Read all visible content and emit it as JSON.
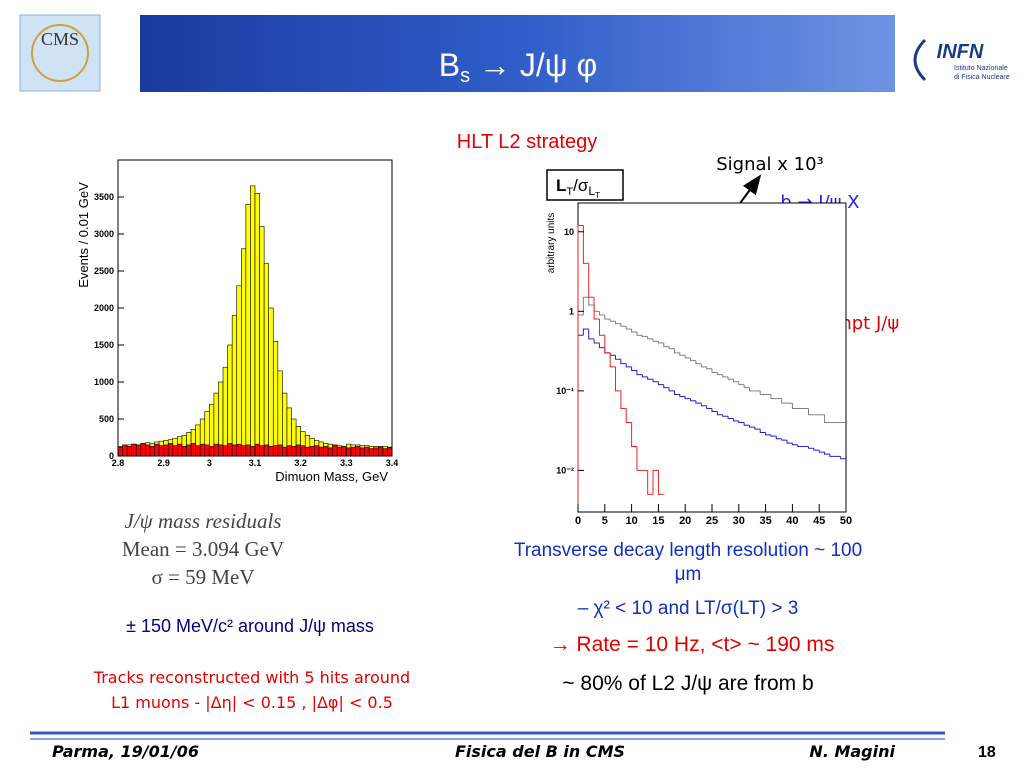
{
  "header": {
    "title": {
      "main": "B",
      "sub": "s",
      "rest": " → J/ψ φ"
    },
    "left_logo": "CMS",
    "right_logo": {
      "name": "INFN",
      "line1": "Istituto Nazionale",
      "line2": "di Fisica Nucleare"
    }
  },
  "heading": "HLT L2 strategy",
  "left": {
    "residuals": [
      "J/ψ mass residuals",
      "Mean = 3.094 GeV",
      "σ = 59 MeV"
    ],
    "window": "± 150 MeV/c² around  J/ψ mass",
    "tracks": [
      "Tracks reconstructed with 5 hits around",
      "L1 muons - |Δη| < 0.15 , |Δφ| < 0.5"
    ]
  },
  "right": {
    "box_label": [
      "L",
      "T",
      "/σ",
      "L",
      "T"
    ],
    "resolution": [
      "Transverse decay length resolution ~ 100",
      "μm"
    ],
    "cut": "–  χ² < 10 and LT/σ(LT) > 3",
    "rate": "→ Rate = 10 Hz,  <t> ~ 190 ms",
    "fraction": "~ 80% of L2 J/ψ are from b"
  },
  "footer": {
    "place": "Parma, 19/01/06",
    "talk": "Fisica del B in CMS",
    "author": "N. Magini",
    "page": "18"
  },
  "chart_data": [
    {
      "type": "histogram",
      "histtype": "filled",
      "xlabel": "Dimuon Mass, GeV",
      "ylabel": "Events / 0.01 GeV",
      "bins": [
        2.8,
        2.81,
        2.82,
        2.83,
        2.84,
        2.85,
        2.86,
        2.87,
        2.88,
        2.89,
        2.9,
        2.91,
        2.92,
        2.93,
        2.94,
        2.95,
        2.96,
        2.97,
        2.98,
        2.99,
        3,
        3.01,
        3.02,
        3.03,
        3.04,
        3.05,
        3.06,
        3.07,
        3.08,
        3.09,
        3.1,
        3.11,
        3.12,
        3.13,
        3.14,
        3.15,
        3.16,
        3.17,
        3.18,
        3.19,
        3.2,
        3.21,
        3.22,
        3.23,
        3.24,
        3.25,
        3.26,
        3.27,
        3.28,
        3.29,
        3.3,
        3.31,
        3.32,
        3.33,
        3.34,
        3.35,
        3.36,
        3.37,
        3.38,
        3.39,
        3.4
      ],
      "series": [
        {
          "color": "#ffff00",
          "values": [
            130,
            140,
            150,
            160,
            150,
            170,
            180,
            170,
            190,
            200,
            210,
            220,
            240,
            260,
            280,
            320,
            360,
            420,
            500,
            600,
            700,
            850,
            1000,
            1200,
            1500,
            1900,
            2300,
            2800,
            3400,
            3650,
            3550,
            3100,
            2600,
            2000,
            1550,
            1150,
            850,
            650,
            500,
            400,
            330,
            280,
            240,
            210,
            190,
            170,
            160,
            150,
            140,
            130,
            160,
            150,
            150,
            140,
            140,
            130,
            130,
            130,
            130,
            120
          ]
        },
        {
          "color": "#ff0000",
          "values": [
            120,
            150,
            130,
            160,
            140,
            170,
            150,
            130,
            160,
            140,
            150,
            170,
            140,
            160,
            130,
            150,
            170,
            140,
            160,
            150,
            130,
            160,
            150,
            140,
            170,
            150,
            160,
            140,
            150,
            130,
            160,
            140,
            150,
            130,
            140,
            150,
            120,
            140,
            130,
            150,
            140,
            120,
            130,
            140,
            120,
            130,
            110,
            140,
            120,
            130,
            110,
            120,
            130,
            110,
            120,
            100,
            110,
            120,
            100,
            110
          ]
        }
      ],
      "xlim": [
        2.8,
        3.4
      ],
      "xticks": [
        2.8,
        2.9,
        3,
        3.1,
        3.2,
        3.3,
        3.4
      ],
      "ylim": [
        0,
        4000
      ],
      "yticks": [
        0,
        500,
        1000,
        1500,
        2000,
        2500,
        3000,
        3500
      ]
    },
    {
      "type": "histogram",
      "histtype": "step",
      "ylabel": "arbitrary units",
      "log_y": true,
      "bins": [
        0,
        1,
        2,
        3,
        4,
        5,
        6,
        7,
        8,
        9,
        10,
        11,
        12,
        13,
        14,
        15,
        16,
        17,
        18,
        19,
        20,
        21,
        22,
        23,
        24,
        25,
        26,
        27,
        28,
        29,
        30,
        31,
        32,
        33,
        34,
        35,
        36,
        37,
        38,
        39,
        40,
        41,
        42,
        43,
        44,
        45,
        46,
        47,
        48,
        49,
        50
      ],
      "series": [
        {
          "name": "Signal x 10³",
          "color": "#808080",
          "values": [
            0.9,
            1.5,
            1.2,
            1,
            0.9,
            0.8,
            0.75,
            0.7,
            0.65,
            0.6,
            0.55,
            0.5,
            0.48,
            0.45,
            0.42,
            0.4,
            0.36,
            0.34,
            0.3,
            0.28,
            0.26,
            0.24,
            0.22,
            0.2,
            0.19,
            0.17,
            0.16,
            0.15,
            0.14,
            0.13,
            0.12,
            0.11,
            0.1,
            0.1,
            0.09,
            0.09,
            0.08,
            0.08,
            0.07,
            0.07,
            0.06,
            0.06,
            0.06,
            0.05,
            0.05,
            0.05,
            0.04,
            0.04,
            0.04,
            0.04
          ]
        },
        {
          "name": "b → J/ψ X",
          "color": "#2222cc",
          "values": [
            0.5,
            0.6,
            0.45,
            0.4,
            0.35,
            0.3,
            0.28,
            0.25,
            0.22,
            0.2,
            0.18,
            0.16,
            0.15,
            0.14,
            0.13,
            0.12,
            0.11,
            0.1,
            0.09,
            0.085,
            0.08,
            0.075,
            0.07,
            0.065,
            0.06,
            0.055,
            0.05,
            0.048,
            0.045,
            0.042,
            0.04,
            0.037,
            0.035,
            0.033,
            0.03,
            0.028,
            0.027,
            0.025,
            0.024,
            0.022,
            0.021,
            0.02,
            0.02,
            0.019,
            0.018,
            0.017,
            0.016,
            0.015,
            0.015,
            0.014
          ]
        },
        {
          "name": "prompt J/ψ",
          "color": "#ee2222",
          "values": [
            12,
            4,
            1.5,
            0.8,
            0.5,
            0.3,
            0.2,
            0.1,
            0.06,
            0.04,
            0.02,
            0.01,
            0.01,
            0.005,
            0.01,
            0.005,
            null,
            null,
            null,
            null,
            null,
            null,
            null,
            null,
            null,
            null,
            null,
            null,
            null,
            null,
            null,
            null,
            null,
            null,
            null,
            null,
            null,
            null,
            null,
            null,
            null,
            null,
            null,
            null,
            null,
            null,
            null,
            null,
            null,
            null
          ]
        }
      ],
      "xlim": [
        0,
        50
      ],
      "xticks": [
        0,
        5,
        10,
        15,
        20,
        25,
        30,
        35,
        40,
        45,
        50
      ],
      "ylim": [
        0.003,
        23
      ],
      "yticks": [
        {
          "value": 0.01,
          "label": "10⁻²"
        },
        {
          "value": 0.1,
          "label": "10⁻¹"
        },
        1,
        10
      ]
    }
  ]
}
